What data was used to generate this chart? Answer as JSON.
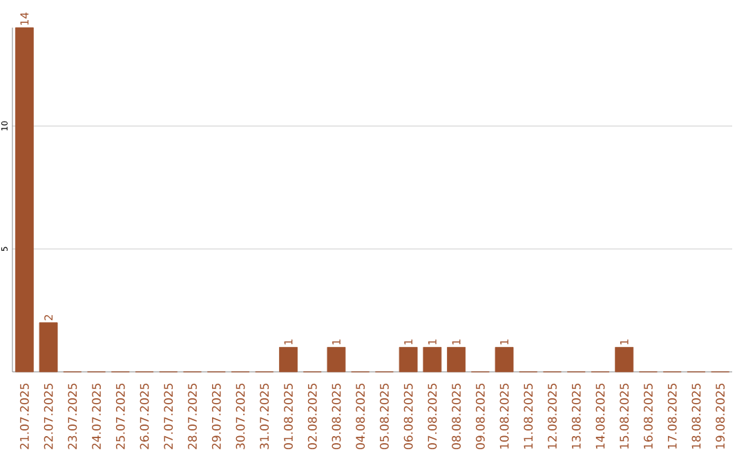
{
  "chart_data": {
    "type": "bar",
    "categories": [
      "21.07.2025",
      "22.07.2025",
      "23.07.2025",
      "24.07.2025",
      "25.07.2025",
      "26.07.2025",
      "27.07.2025",
      "28.07.2025",
      "29.07.2025",
      "30.07.2025",
      "31.07.2025",
      "01.08.2025",
      "02.08.2025",
      "03.08.2025",
      "04.08.2025",
      "05.08.2025",
      "06.08.2025",
      "07.08.2025",
      "08.08.2025",
      "09.08.2025",
      "10.08.2025",
      "11.08.2025",
      "12.08.2025",
      "13.08.2025",
      "14.08.2025",
      "15.08.2025",
      "16.08.2025",
      "17.08.2025",
      "18.08.2025",
      "19.08.2025"
    ],
    "values": [
      14,
      2,
      0,
      0,
      0,
      0,
      0,
      0,
      0,
      0,
      0,
      1,
      0,
      1,
      0,
      0,
      1,
      1,
      1,
      0,
      1,
      0,
      0,
      0,
      0,
      1,
      0,
      0,
      0,
      0
    ],
    "value_labels": [
      "14",
      "2",
      null,
      null,
      null,
      null,
      null,
      null,
      null,
      null,
      null,
      "1",
      null,
      "1",
      null,
      null,
      "1",
      "1",
      "1",
      null,
      "1",
      null,
      null,
      null,
      null,
      "1",
      null,
      null,
      null,
      null
    ],
    "color": "#a0522d",
    "ylim": [
      0,
      14
    ],
    "yticks": [
      5,
      10
    ],
    "grid": "y"
  }
}
